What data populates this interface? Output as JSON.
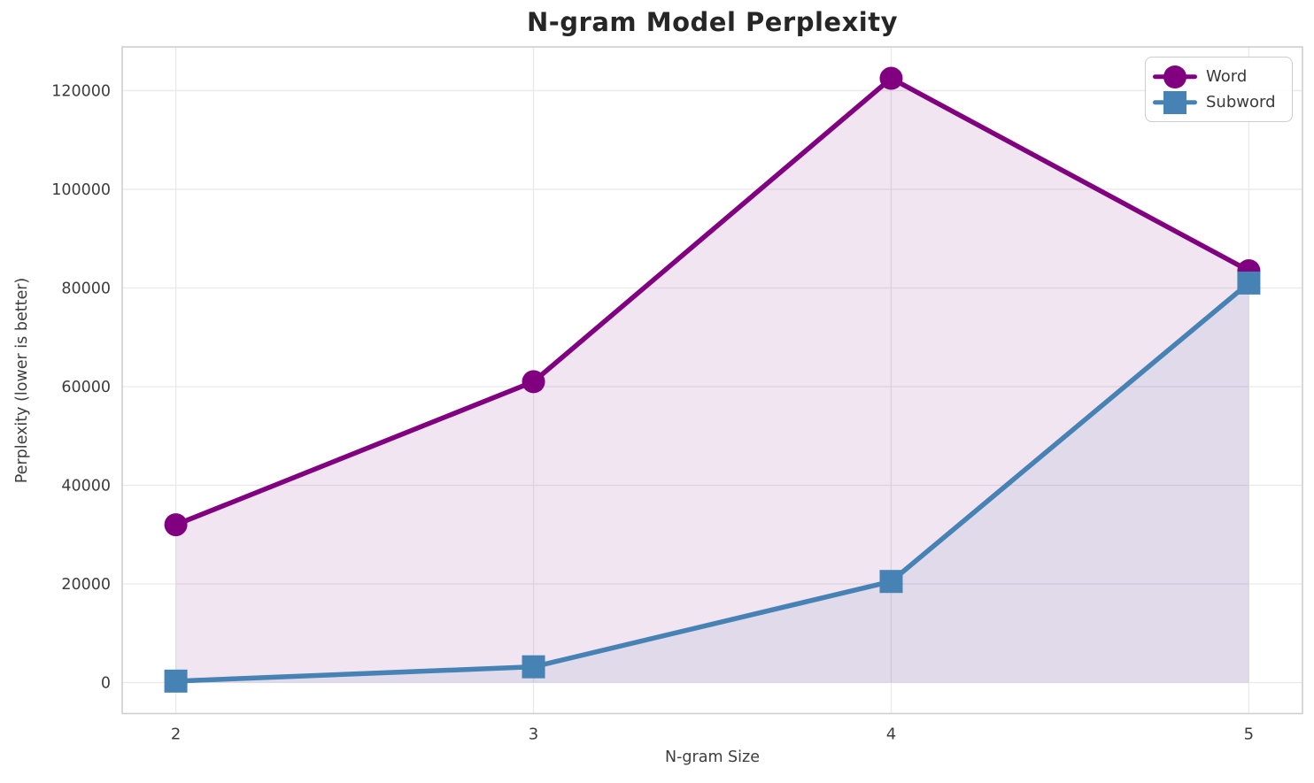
{
  "chart_data": {
    "type": "line",
    "title": "N-gram Model Perplexity",
    "xlabel": "N-gram Size",
    "ylabel": "Perplexity (lower is better)",
    "x": [
      2,
      3,
      4,
      5
    ],
    "series": [
      {
        "name": "Word",
        "color": "#800080",
        "marker": "circle",
        "values": [
          32000,
          61000,
          122500,
          83500
        ],
        "fill_to_zero": true,
        "fill_alpha": 0.1
      },
      {
        "name": "Subword",
        "color": "#4682b4",
        "marker": "square",
        "values": [
          300,
          3200,
          20500,
          81000
        ],
        "fill_to_zero": true,
        "fill_alpha": 0.1
      }
    ],
    "xticks": [
      2,
      3,
      4,
      5
    ],
    "yticks": [
      0,
      20000,
      40000,
      60000,
      80000,
      100000,
      120000
    ],
    "xlim": [
      1.85,
      5.15
    ],
    "ylim": [
      -6278,
      128870
    ],
    "grid": true,
    "legend_position": "upper right"
  },
  "style": {
    "background": "#ffffff",
    "grid_color": "#e9e9e9",
    "spine_color": "#cfcfcf",
    "tick_label_color": "#3d3d3d",
    "title_color": "#262626",
    "axis_label_color": "#3d3d3d",
    "legend_border_color": "#cccccc",
    "legend_text_color": "#3a3a3a"
  }
}
